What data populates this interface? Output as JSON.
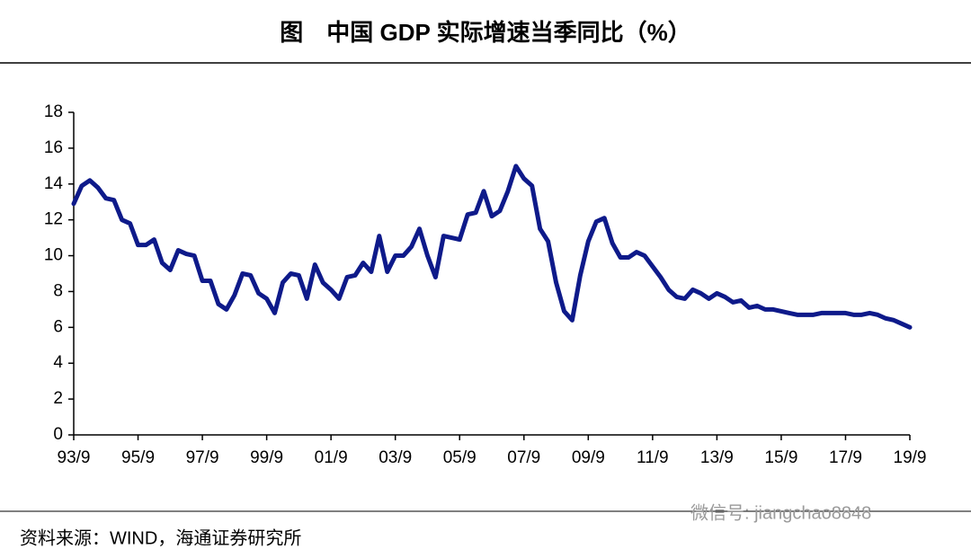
{
  "chart_data": {
    "type": "line",
    "title": "图　中国 GDP 实际增速当季同比（%）",
    "source": "资料来源：WIND，海通证券研究所",
    "watermark": "微信号: jiangchao8848",
    "categories": [
      "93/9",
      null,
      null,
      null,
      null,
      null,
      null,
      null,
      "95/9",
      null,
      null,
      null,
      null,
      null,
      null,
      null,
      "97/9",
      null,
      null,
      null,
      null,
      null,
      null,
      null,
      "99/9",
      null,
      null,
      null,
      null,
      null,
      null,
      null,
      "01/9",
      null,
      null,
      null,
      null,
      null,
      null,
      null,
      "03/9",
      null,
      null,
      null,
      null,
      null,
      null,
      null,
      "05/9",
      null,
      null,
      null,
      null,
      null,
      null,
      null,
      "07/9",
      null,
      null,
      null,
      null,
      null,
      null,
      null,
      "09/9",
      null,
      null,
      null,
      null,
      null,
      null,
      null,
      "11/9",
      null,
      null,
      null,
      null,
      null,
      null,
      null,
      "13/9",
      null,
      null,
      null,
      null,
      null,
      null,
      null,
      "15/9",
      null,
      null,
      null,
      null,
      null,
      null,
      null,
      "17/9",
      null,
      null,
      null,
      null,
      null,
      null,
      null,
      "19/9"
    ],
    "series": [
      {
        "name": "GDP",
        "color": "#0e1a8a",
        "values": [
          12.9,
          13.9,
          14.2,
          13.8,
          13.2,
          13.1,
          12.0,
          11.8,
          10.6,
          10.6,
          10.9,
          9.6,
          9.2,
          10.3,
          10.1,
          10.0,
          8.6,
          8.6,
          7.3,
          7.0,
          7.8,
          9.0,
          8.9,
          7.9,
          7.6,
          6.8,
          8.5,
          9.0,
          8.9,
          7.6,
          9.5,
          8.5,
          8.1,
          7.6,
          8.8,
          8.9,
          9.6,
          9.1,
          11.1,
          9.1,
          10.0,
          10.0,
          10.5,
          11.5,
          10.0,
          8.8,
          11.1,
          11.0,
          10.9,
          12.3,
          12.4,
          13.6,
          12.2,
          12.5,
          13.6,
          15.0,
          14.3,
          13.9,
          11.5,
          10.8,
          8.5,
          6.9,
          6.4,
          8.9,
          10.8,
          11.9,
          12.1,
          10.7,
          9.9,
          9.9,
          10.2,
          10.0,
          9.4,
          8.8,
          8.1,
          7.7,
          7.6,
          8.1,
          7.9,
          7.6,
          7.9,
          7.7,
          7.4,
          7.5,
          7.1,
          7.2,
          7.0,
          7.0,
          6.9,
          6.8,
          6.7,
          6.7,
          6.7,
          6.8,
          6.8,
          6.8,
          6.8,
          6.7,
          6.7,
          6.8,
          6.7,
          6.5,
          6.4,
          6.2,
          6.0
        ]
      }
    ],
    "ylim": [
      0,
      18
    ],
    "yticks": [
      0,
      2,
      4,
      6,
      8,
      10,
      12,
      14,
      16,
      18
    ]
  }
}
